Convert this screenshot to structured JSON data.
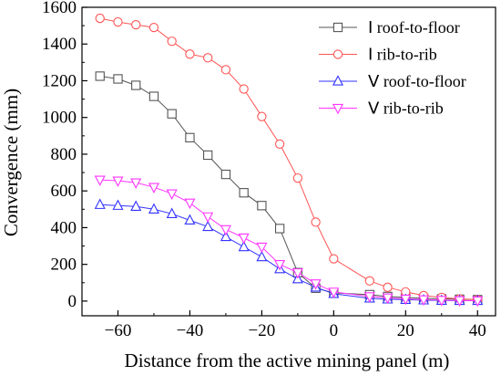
{
  "chart_data": {
    "type": "line",
    "title": "",
    "xlabel": "Distance from the active mining panel (m)",
    "ylabel": "Convergence (mm)",
    "xlim": [
      -70,
      45
    ],
    "ylim": [
      -80,
      1600
    ],
    "xticks": [
      -60,
      -40,
      -20,
      0,
      20,
      40
    ],
    "yticks": [
      0,
      200,
      400,
      600,
      800,
      1000,
      1200,
      1400,
      1600
    ],
    "x_tick_labels": [
      "−60",
      "−40",
      "−20",
      "0",
      "20",
      "40"
    ],
    "y_tick_labels": [
      "0",
      "200",
      "400",
      "600",
      "800",
      "1000",
      "1200",
      "1400",
      "1600"
    ],
    "grid": false,
    "legend_position": "top-right",
    "series": [
      {
        "name": "Ⅰ roof-to-floor",
        "color": "#555555",
        "marker": "square",
        "x": [
          -65,
          -60,
          -55,
          -50,
          -45,
          -40,
          -35,
          -30,
          -25,
          -20,
          -15,
          -10,
          -5,
          0,
          10,
          15,
          20,
          25,
          30,
          35,
          40
        ],
        "y": [
          1225,
          1210,
          1175,
          1115,
          1020,
          890,
          795,
          690,
          590,
          520,
          395,
          155,
          70,
          45,
          35,
          25,
          20,
          15,
          12,
          10,
          8
        ]
      },
      {
        "name": "Ⅰ rib-to-rib",
        "color": "#ff5555",
        "marker": "circle",
        "x": [
          -65,
          -60,
          -55,
          -50,
          -45,
          -40,
          -35,
          -30,
          -25,
          -20,
          -15,
          -10,
          -5,
          0,
          10,
          15,
          20,
          25,
          30,
          35,
          40
        ],
        "y": [
          1540,
          1520,
          1505,
          1490,
          1415,
          1345,
          1325,
          1260,
          1155,
          1005,
          855,
          670,
          430,
          230,
          110,
          75,
          50,
          30,
          20,
          12,
          8
        ]
      },
      {
        "name": "Ⅴ roof-to-floor",
        "color": "#3333ff",
        "marker": "triangle-up",
        "x": [
          -65,
          -60,
          -55,
          -50,
          -45,
          -40,
          -35,
          -30,
          -25,
          -20,
          -15,
          -10,
          -5,
          0,
          10,
          15,
          20,
          25,
          30,
          35,
          40
        ],
        "y": [
          525,
          520,
          515,
          500,
          475,
          440,
          405,
          350,
          295,
          240,
          175,
          120,
          75,
          40,
          15,
          10,
          8,
          5,
          3,
          2,
          2
        ]
      },
      {
        "name": "Ⅴ rib-to-rib",
        "color": "#ff33ff",
        "marker": "triangle-down",
        "x": [
          -65,
          -60,
          -55,
          -50,
          -45,
          -40,
          -35,
          -30,
          -25,
          -20,
          -15,
          -10,
          -5,
          0,
          10,
          15,
          20,
          25,
          30,
          35,
          40
        ],
        "y": [
          660,
          655,
          645,
          620,
          585,
          535,
          460,
          390,
          345,
          295,
          200,
          155,
          95,
          50,
          25,
          18,
          12,
          8,
          5,
          3,
          2
        ]
      }
    ]
  }
}
